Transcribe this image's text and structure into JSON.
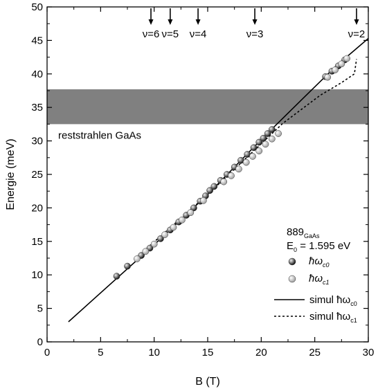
{
  "chart_data": {
    "type": "scatter",
    "xlabel": "B (T)",
    "ylabel": "Energie (meV)",
    "xlim": [
      0,
      30
    ],
    "ylim": [
      0,
      50
    ],
    "x_ticks": [
      0,
      5,
      10,
      15,
      20,
      25,
      30
    ],
    "y_ticks": [
      0,
      5,
      10,
      15,
      20,
      25,
      30,
      35,
      40,
      45,
      50
    ],
    "band": {
      "label": "reststrahlen GaAs",
      "y_range": [
        32.5,
        37.7
      ],
      "color": "#808080"
    },
    "filling_factors": [
      {
        "label": "ν=6",
        "B": 9.7
      },
      {
        "label": "ν=5",
        "B": 11.5
      },
      {
        "label": "ν=4",
        "B": 14.1
      },
      {
        "label": "ν=3",
        "B": 19.4
      },
      {
        "label": "ν=2",
        "B": 28.9
      }
    ],
    "legend": {
      "sample_main": "889",
      "sample_sub": "GaAs",
      "energy_main": "E",
      "energy_sub": "0",
      "energy_value": " = 1.595 eV",
      "entries": [
        {
          "main": "ħω",
          "sub": "c0"
        },
        {
          "main": "ħω",
          "sub": "c1"
        },
        {
          "main": "simul ħω",
          "sub": "c0"
        },
        {
          "main": "simul ħω",
          "sub": "c1"
        }
      ]
    },
    "series": [
      {
        "name": "ħωc0",
        "marker_color": "#111111",
        "points": [
          [
            6.5,
            9.8
          ],
          [
            7.5,
            11.3
          ],
          [
            8.8,
            12.9
          ],
          [
            9.6,
            14.0
          ],
          [
            10.6,
            15.4
          ],
          [
            11.5,
            16.7
          ],
          [
            12.3,
            17.9
          ],
          [
            13.0,
            18.9
          ],
          [
            13.7,
            20.0
          ],
          [
            14.3,
            21.0
          ],
          [
            14.8,
            21.8
          ],
          [
            15.2,
            22.6
          ],
          [
            15.6,
            23.2
          ],
          [
            16.2,
            24.1
          ],
          [
            16.8,
            25.0
          ],
          [
            17.5,
            26.1
          ],
          [
            18.1,
            27.1
          ],
          [
            18.7,
            28.0
          ],
          [
            19.3,
            29.0
          ],
          [
            19.8,
            29.8
          ],
          [
            20.2,
            30.4
          ],
          [
            20.6,
            31.1
          ],
          [
            21.0,
            31.7
          ],
          [
            26.0,
            39.6
          ],
          [
            26.6,
            40.4
          ],
          [
            27.2,
            41.2
          ],
          [
            27.8,
            42.1
          ]
        ]
      },
      {
        "name": "ħωc1",
        "marker_color": "#a0a0a0",
        "points": [
          [
            8.4,
            12.4
          ],
          [
            9.2,
            13.5
          ],
          [
            10.0,
            14.6
          ],
          [
            11.0,
            16.0
          ],
          [
            11.8,
            17.1
          ],
          [
            12.6,
            18.2
          ],
          [
            13.4,
            19.3
          ],
          [
            14.6,
            21.1
          ],
          [
            16.5,
            23.9
          ],
          [
            17.2,
            24.8
          ],
          [
            17.9,
            25.8
          ],
          [
            18.6,
            26.8
          ],
          [
            19.2,
            27.7
          ],
          [
            19.8,
            28.5
          ],
          [
            20.4,
            29.5
          ],
          [
            21.0,
            30.3
          ],
          [
            21.6,
            31.1
          ],
          [
            26.2,
            39.5
          ],
          [
            26.9,
            40.6
          ],
          [
            27.5,
            41.5
          ],
          [
            28.0,
            42.3
          ]
        ]
      }
    ],
    "lines": [
      {
        "name": "simul ħωc0",
        "style": "solid",
        "points": [
          [
            2,
            3.0
          ],
          [
            10,
            14.5
          ],
          [
            15,
            22.0
          ],
          [
            20,
            30.2
          ],
          [
            24,
            36.5
          ],
          [
            27,
            41.2
          ],
          [
            30,
            45.3
          ]
        ]
      },
      {
        "name": "simul ħωc1",
        "style": "dotted",
        "points": [
          [
            9,
            13.5
          ],
          [
            15,
            22.0
          ],
          [
            22,
            32.6
          ],
          [
            25.5,
            36.8
          ],
          [
            27.5,
            38.7
          ],
          [
            28.7,
            40.0
          ],
          [
            28.9,
            42.2
          ]
        ]
      }
    ]
  }
}
